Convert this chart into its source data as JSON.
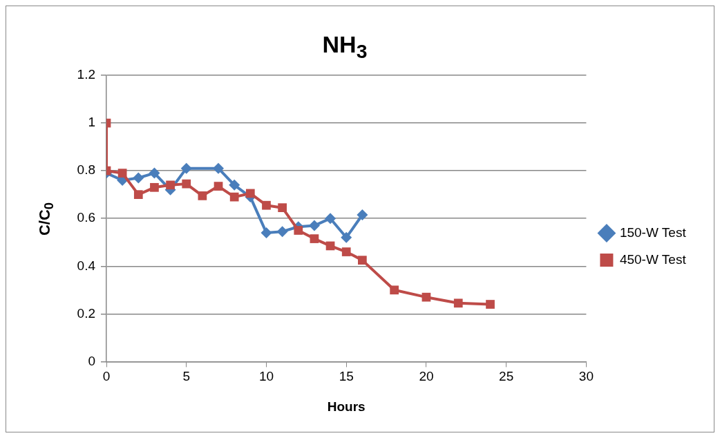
{
  "chart_data": {
    "type": "line",
    "title": "NH$_{3}$",
    "xlabel": "Hours",
    "ylabel": "C/C$_{0}$",
    "xlim": [
      0,
      30
    ],
    "xticks": [
      0,
      5,
      10,
      15,
      20,
      25,
      30
    ],
    "ylim": [
      0,
      1.2
    ],
    "yticks": [
      0,
      0.2,
      0.4,
      0.6,
      0.8,
      1,
      1.2
    ],
    "grid": "y",
    "legend": "right",
    "series": [
      {
        "name": "150-W Test",
        "color": "#4a7ebb",
        "marker": "diamond",
        "x": [
          0,
          1,
          2,
          3,
          4,
          5,
          7,
          8,
          9,
          10,
          11,
          12,
          13,
          14,
          15,
          16
        ],
        "values": [
          0.79,
          0.76,
          0.77,
          0.79,
          0.72,
          0.81,
          0.81,
          0.74,
          0.69,
          0.54,
          0.545,
          0.565,
          0.57,
          0.6,
          0.52,
          0.615
        ]
      },
      {
        "name": "450-W Test",
        "color": "#be4b48",
        "marker": "square",
        "x": [
          0,
          0,
          1,
          2,
          3,
          4,
          5,
          6,
          7,
          8,
          9,
          10,
          11,
          12,
          13,
          14,
          15,
          16,
          18,
          20,
          22,
          24
        ],
        "values": [
          1.0,
          0.8,
          0.79,
          0.7,
          0.73,
          0.74,
          0.745,
          0.695,
          0.735,
          0.69,
          0.705,
          0.655,
          0.645,
          0.55,
          0.515,
          0.485,
          0.46,
          0.425,
          0.3,
          0.27,
          0.245,
          0.24
        ]
      }
    ]
  }
}
